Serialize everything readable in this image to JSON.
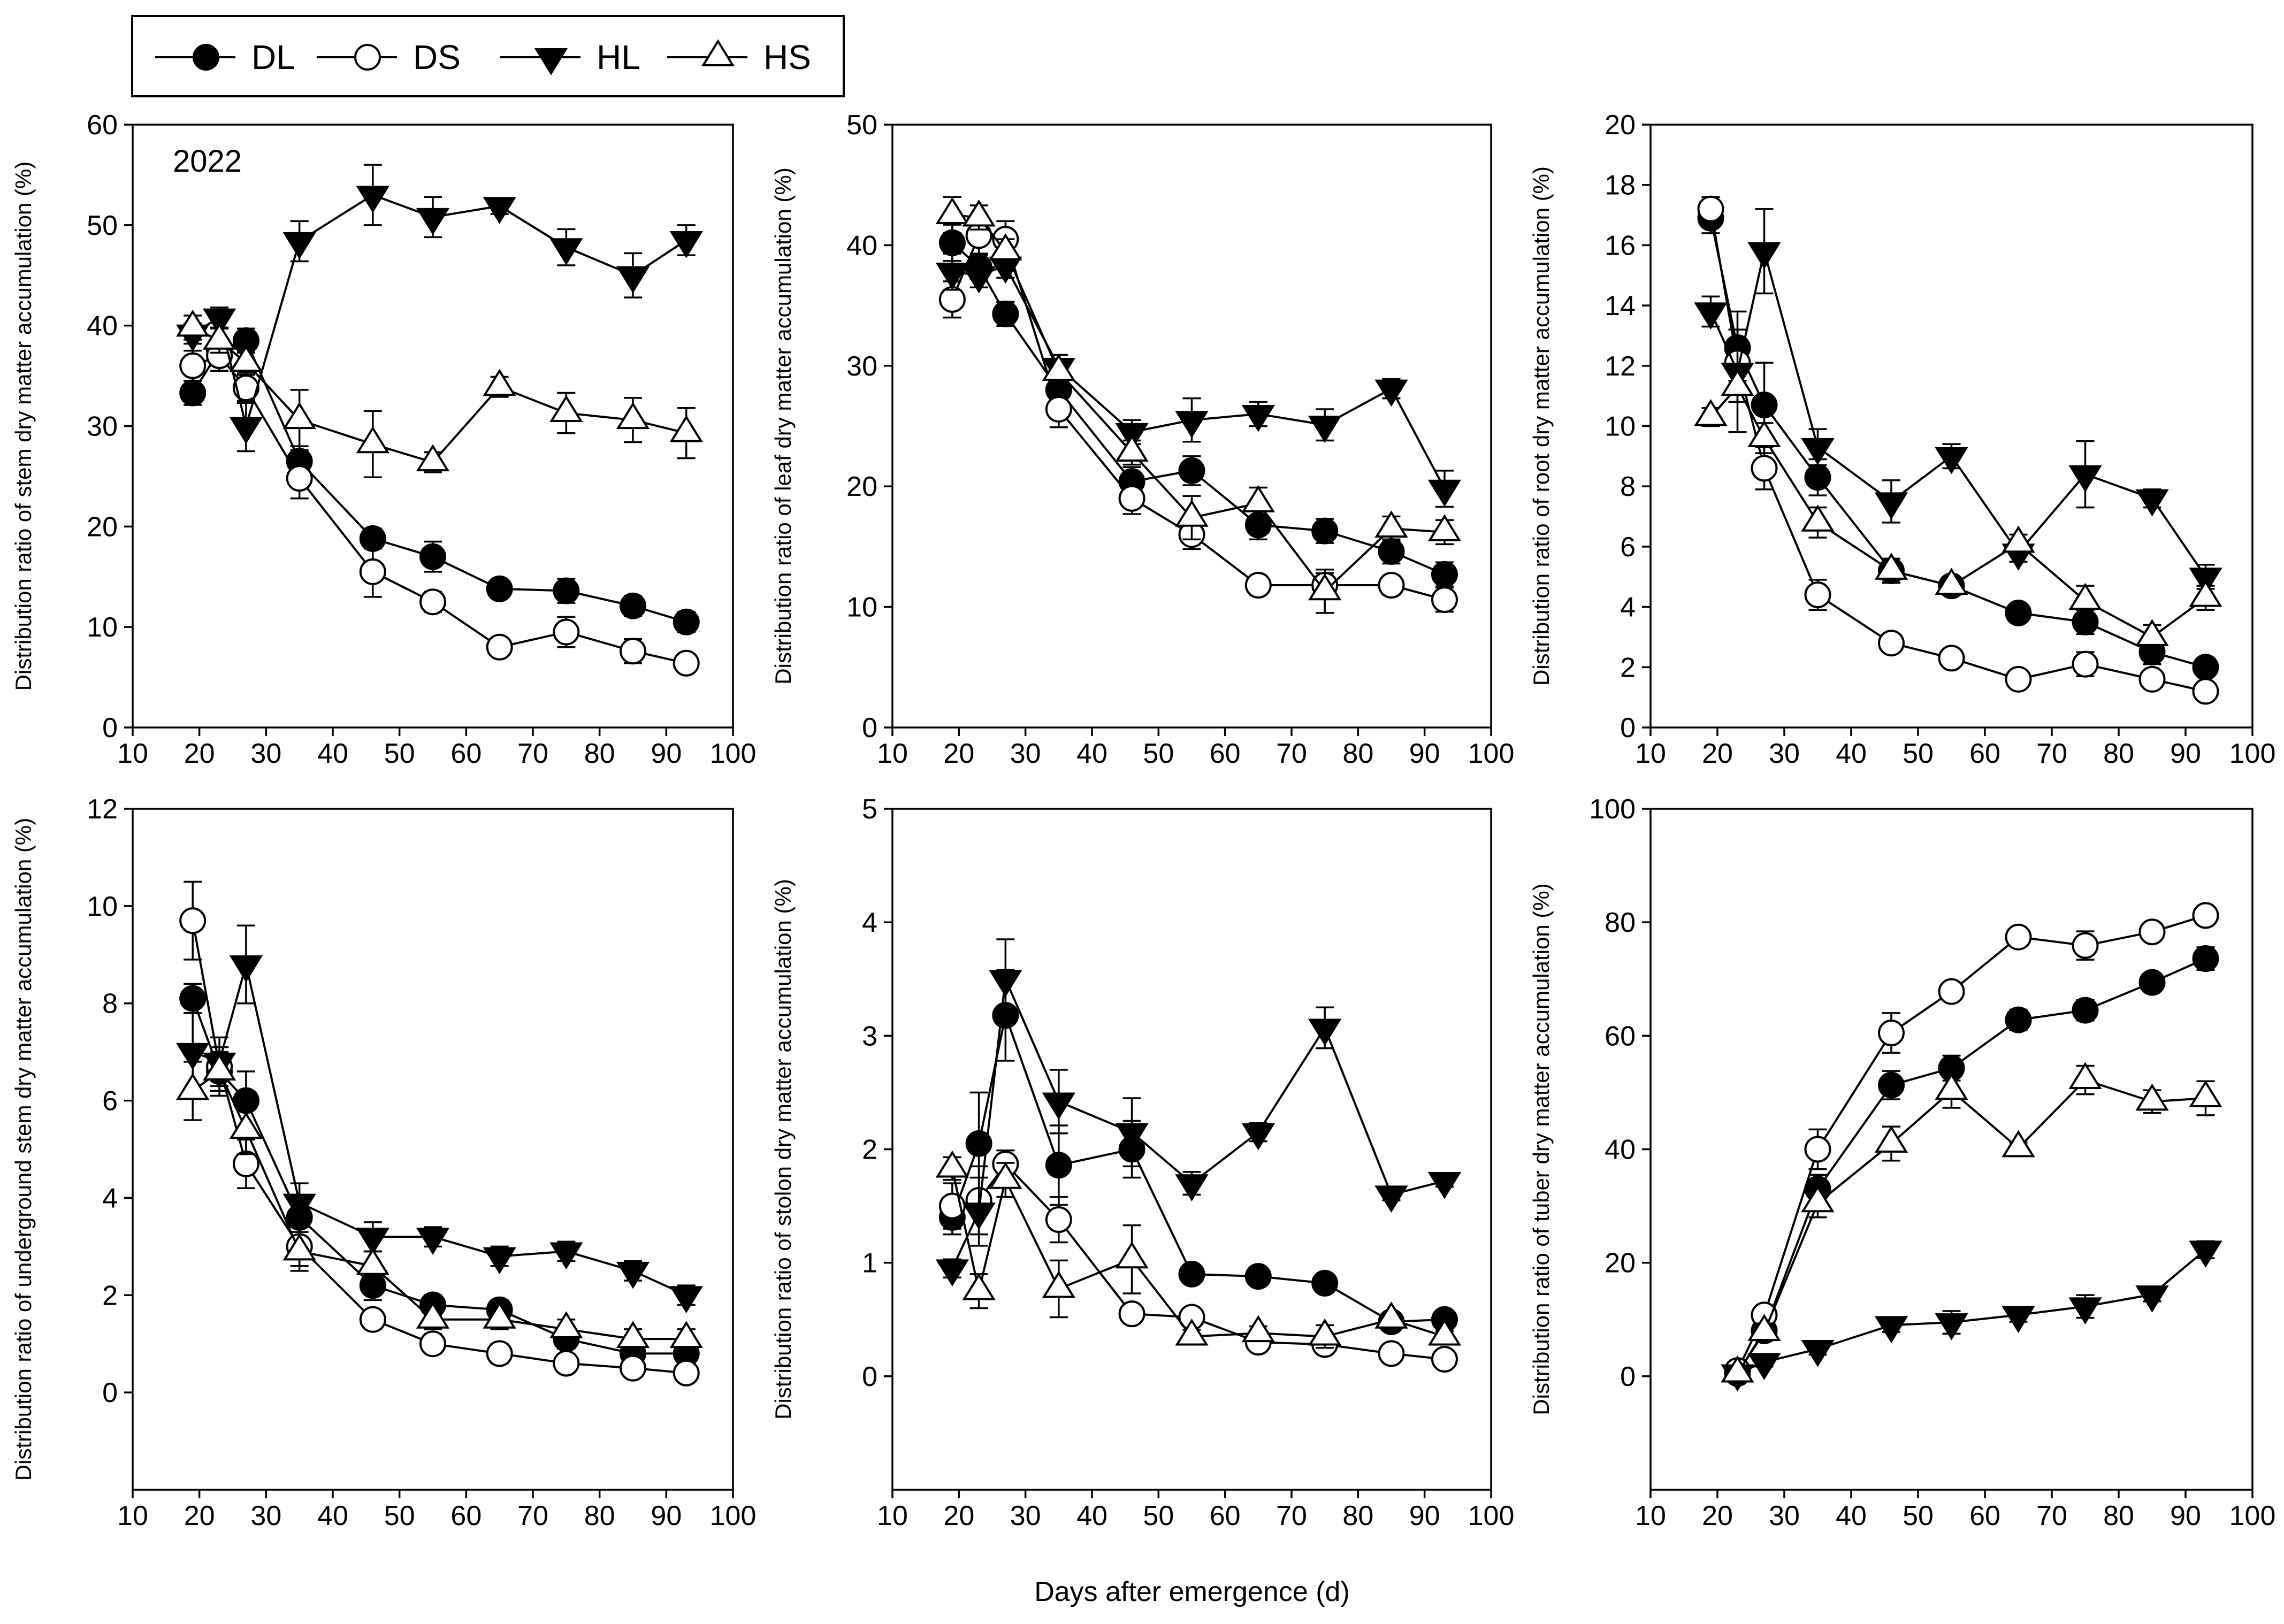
{
  "figure": {
    "shared_xlabel": "Days after emergence (d)",
    "legend": [
      {
        "name": "DL",
        "marker": "circle",
        "fill": "#000000"
      },
      {
        "name": "DS",
        "marker": "circle",
        "fill": "#ffffff"
      },
      {
        "name": "HL",
        "marker": "triangle-down",
        "fill": "#000000"
      },
      {
        "name": "HS",
        "marker": "triangle-up",
        "fill": "#ffffff"
      }
    ],
    "line_color": "#000000"
  },
  "chart_data": [
    {
      "type": "line",
      "ylabel": "Distribution ratio of stem dry matter accumulation (%)",
      "annotation": "2022",
      "xlim": [
        10,
        100
      ],
      "ylim": [
        0,
        60
      ],
      "xticks": [
        10,
        20,
        30,
        40,
        50,
        60,
        70,
        80,
        90,
        100
      ],
      "yticks": [
        0,
        10,
        20,
        30,
        40,
        50,
        60
      ],
      "series": [
        {
          "name": "DL",
          "x": [
            19,
            23,
            27,
            35,
            46,
            55,
            65,
            75,
            85,
            93
          ],
          "values": [
            33.3,
            37.5,
            38.5,
            26.5,
            18.8,
            17,
            13.8,
            13.6,
            12.1,
            10.5
          ],
          "err": [
            1.2,
            1,
            1.2,
            1.5,
            1,
            1.5,
            0.8,
            1.2,
            1,
            1
          ]
        },
        {
          "name": "DS",
          "x": [
            19,
            23,
            27,
            35,
            46,
            55,
            65,
            75,
            85,
            93
          ],
          "values": [
            36,
            37,
            33.8,
            24.8,
            15.5,
            12.5,
            8,
            9.5,
            7.6,
            6.4
          ],
          "err": [
            1.5,
            1.5,
            1.5,
            2,
            2.5,
            1,
            0.8,
            1.5,
            1.2,
            0.8
          ]
        },
        {
          "name": "HL",
          "x": [
            19,
            23,
            27,
            35,
            46,
            55,
            65,
            75,
            85,
            93
          ],
          "values": [
            39.2,
            40.8,
            30,
            48.4,
            53,
            50.8,
            51.9,
            47.8,
            45,
            48.5
          ],
          "err": [
            1,
            1,
            2.5,
            2,
            3,
            2,
            0.8,
            1.8,
            2.2,
            1.5
          ]
        },
        {
          "name": "HS",
          "x": [
            19,
            23,
            27,
            35,
            46,
            55,
            65,
            75,
            85,
            93
          ],
          "values": [
            39.8,
            38.5,
            36.3,
            30.6,
            28.2,
            26.4,
            33.9,
            31.3,
            30.6,
            29.3
          ],
          "err": [
            1.2,
            1.2,
            1.2,
            3,
            3.3,
            1,
            1,
            2,
            2.2,
            2.5
          ]
        }
      ]
    },
    {
      "type": "line",
      "ylabel": "Distribution ratio of leaf dry matter accumulation (%)",
      "xlim": [
        10,
        100
      ],
      "ylim": [
        0,
        50
      ],
      "xticks": [
        10,
        20,
        30,
        40,
        50,
        60,
        70,
        80,
        90,
        100
      ],
      "yticks": [
        0,
        10,
        20,
        30,
        40,
        50
      ],
      "series": [
        {
          "name": "DL",
          "x": [
            19,
            23,
            27,
            35,
            46,
            55,
            65,
            75,
            85,
            93
          ],
          "values": [
            40.2,
            38.2,
            34.3,
            28,
            20.4,
            21.3,
            16.8,
            16.3,
            14.6,
            12.7
          ],
          "err": [
            1.5,
            1,
            1,
            1,
            1.2,
            1.2,
            1.2,
            1,
            1,
            1
          ]
        },
        {
          "name": "DS",
          "x": [
            19,
            23,
            27,
            35,
            46,
            55,
            65,
            75,
            85,
            93
          ],
          "values": [
            35.5,
            40.8,
            40.5,
            26.4,
            19,
            16,
            11.8,
            11.8,
            11.8,
            10.6
          ],
          "err": [
            1.5,
            1.5,
            1.5,
            1.5,
            1.3,
            1.2,
            0.8,
            1,
            0.8,
            1
          ]
        },
        {
          "name": "HL",
          "x": [
            19,
            23,
            27,
            35,
            46,
            55,
            65,
            75,
            85,
            93
          ],
          "values": [
            37.8,
            37.5,
            38.3,
            29.9,
            24.5,
            25.5,
            26,
            25.1,
            28.1,
            19.8
          ],
          "err": [
            1.5,
            1,
            1,
            1,
            1,
            1.8,
            1,
            1.3,
            0.8,
            1.5
          ]
        },
        {
          "name": "HS",
          "x": [
            19,
            23,
            27,
            35,
            46,
            55,
            65,
            75,
            85,
            93
          ],
          "values": [
            42.5,
            42.3,
            39.5,
            29.5,
            22.8,
            17.4,
            18.6,
            11.3,
            16.5,
            16.2
          ],
          "err": [
            1.5,
            1,
            1,
            1,
            1,
            1.8,
            1.3,
            1.8,
            1,
            1
          ]
        }
      ]
    },
    {
      "type": "line",
      "ylabel": "Distribution ratio of root dry matter accumulation (%)",
      "xlim": [
        10,
        100
      ],
      "ylim": [
        0,
        20
      ],
      "xticks": [
        10,
        20,
        30,
        40,
        50,
        60,
        70,
        80,
        90,
        100
      ],
      "yticks": [
        0,
        2,
        4,
        6,
        8,
        10,
        12,
        14,
        16,
        18,
        20
      ],
      "series": [
        {
          "name": "DL",
          "x": [
            19,
            23,
            27,
            35,
            46,
            55,
            65,
            75,
            85,
            93
          ],
          "values": [
            16.9,
            12.6,
            10.7,
            8.3,
            5.2,
            4.7,
            3.8,
            3.5,
            2.5,
            2
          ],
          "err": [
            0.5,
            0.6,
            1.4,
            0.6,
            0.4,
            0.3,
            0.3,
            0.4,
            0.4,
            0.3
          ]
        },
        {
          "name": "DS",
          "x": [
            19,
            23,
            27,
            35,
            46,
            55,
            65,
            75,
            85,
            93
          ],
          "values": [
            17.2,
            12.1,
            8.6,
            4.4,
            2.8,
            2.3,
            1.6,
            2.1,
            1.6,
            1.2
          ],
          "err": [
            0.4,
            0.6,
            0.7,
            0.5,
            0.3,
            0.3,
            0.2,
            0.4,
            0.3,
            0.2
          ]
        },
        {
          "name": "HL",
          "x": [
            19,
            23,
            27,
            35,
            46,
            55,
            65,
            75,
            85,
            93
          ],
          "values": [
            13.8,
            11.8,
            15.8,
            9.3,
            7.5,
            9,
            5.8,
            8.4,
            7.6,
            5
          ],
          "err": [
            0.5,
            2,
            1.4,
            0.6,
            0.7,
            0.4,
            0.3,
            1.1,
            0.3,
            0.4
          ]
        },
        {
          "name": "HS",
          "x": [
            19,
            23,
            27,
            35,
            46,
            55,
            65,
            75,
            85,
            93
          ],
          "values": [
            10.3,
            11.3,
            9.6,
            6.8,
            5.2,
            4.7,
            6.1,
            4.2,
            3,
            4.3
          ],
          "err": [
            0.3,
            0.5,
            0.5,
            0.5,
            0.4,
            0.3,
            0.3,
            0.5,
            0.4,
            0.4
          ]
        }
      ]
    },
    {
      "type": "line",
      "ylabel": "Distribution ratio of underground stem dry matter accumulation (%)",
      "xlim": [
        10,
        100
      ],
      "ylim": [
        -2,
        12
      ],
      "xticks": [
        10,
        20,
        30,
        40,
        50,
        60,
        70,
        80,
        90,
        100
      ],
      "yticks": [
        0,
        2,
        4,
        6,
        8,
        10,
        12
      ],
      "series": [
        {
          "name": "DL",
          "x": [
            19,
            23,
            27,
            35,
            46,
            55,
            65,
            75,
            85,
            93
          ],
          "values": [
            8.1,
            6.6,
            6,
            3.6,
            2.2,
            1.8,
            1.7,
            1.1,
            0.8,
            0.8
          ],
          "err": [
            0.3,
            0.4,
            0.6,
            0.4,
            0.3,
            0.2,
            0.2,
            0.2,
            0.2,
            0.2
          ]
        },
        {
          "name": "DS",
          "x": [
            19,
            23,
            27,
            35,
            46,
            55,
            65,
            75,
            85,
            93
          ],
          "values": [
            9.7,
            6.7,
            4.7,
            3,
            1.5,
            1,
            0.8,
            0.6,
            0.5,
            0.4
          ],
          "err": [
            0.8,
            0.4,
            0.5,
            0.4,
            0.2,
            0.2,
            0.2,
            0.1,
            0.1,
            0.1
          ]
        },
        {
          "name": "HL",
          "x": [
            19,
            23,
            27,
            35,
            46,
            55,
            65,
            75,
            85,
            93
          ],
          "values": [
            7,
            6.8,
            8.8,
            3.9,
            3.2,
            3.2,
            2.8,
            2.9,
            2.5,
            2
          ],
          "err": [
            0.8,
            0.5,
            0.8,
            0.4,
            0.3,
            0.2,
            0.2,
            0.2,
            0.2,
            0.2
          ]
        },
        {
          "name": "HS",
          "x": [
            19,
            23,
            27,
            35,
            46,
            55,
            65,
            75,
            85,
            93
          ],
          "values": [
            6.2,
            6.6,
            5.4,
            2.9,
            2.6,
            1.5,
            1.5,
            1.3,
            1.1,
            1.1
          ],
          "err": [
            0.6,
            0.5,
            0.5,
            0.4,
            0.3,
            0.2,
            0.2,
            0.2,
            0.2,
            0.2
          ]
        }
      ]
    },
    {
      "type": "line",
      "ylabel": "Distribution ratio of stolon dry matter accumulation (%)",
      "xlim": [
        10,
        100
      ],
      "ylim": [
        -1,
        5
      ],
      "xticks": [
        10,
        20,
        30,
        40,
        50,
        60,
        70,
        80,
        90,
        100
      ],
      "yticks": [
        0,
        1,
        2,
        3,
        4,
        5
      ],
      "series": [
        {
          "name": "DL",
          "x": [
            19,
            23,
            27,
            35,
            46,
            55,
            65,
            75,
            85,
            93
          ],
          "values": [
            1.4,
            2.05,
            3.18,
            1.86,
            2,
            0.9,
            0.88,
            0.82,
            0.48,
            0.5
          ],
          "err": [
            0.15,
            0.45,
            0.4,
            0.35,
            0.25,
            0.08,
            0.06,
            0.08,
            0.06,
            0.06
          ]
        },
        {
          "name": "DS",
          "x": [
            19,
            23,
            27,
            35,
            46,
            55,
            65,
            75,
            85,
            93
          ],
          "values": [
            1.5,
            1.55,
            1.87,
            1.38,
            0.55,
            0.52,
            0.3,
            0.28,
            0.2,
            0.15
          ],
          "err": [
            0.2,
            0.3,
            0.12,
            0.2,
            0.08,
            0.08,
            0.05,
            0.05,
            0.05,
            0.04
          ]
        },
        {
          "name": "HL",
          "x": [
            19,
            23,
            27,
            35,
            46,
            55,
            65,
            75,
            85,
            93
          ],
          "values": [
            0.95,
            1.45,
            3.5,
            2.42,
            2.15,
            1.7,
            2.15,
            3.07,
            1.6,
            1.72
          ],
          "err": [
            0.08,
            0.3,
            0.35,
            0.28,
            0.3,
            0.1,
            0.08,
            0.18,
            0.05,
            0.05
          ]
        },
        {
          "name": "HS",
          "x": [
            19,
            23,
            27,
            35,
            46,
            55,
            65,
            75,
            85,
            93
          ],
          "values": [
            1.83,
            0.75,
            1.73,
            0.77,
            1.03,
            0.35,
            0.38,
            0.35,
            0.5,
            0.35
          ],
          "err": [
            0.1,
            0.15,
            0.15,
            0.25,
            0.3,
            0.06,
            0.06,
            0.1,
            0.05,
            0.05
          ]
        }
      ]
    },
    {
      "type": "line",
      "ylabel": "Distribution ratio of tuber dry matter accumulation (%)",
      "xlim": [
        10,
        100
      ],
      "ylim": [
        -20,
        100
      ],
      "xticks": [
        10,
        20,
        30,
        40,
        50,
        60,
        70,
        80,
        90,
        100
      ],
      "yticks": [
        0,
        20,
        40,
        60,
        80,
        100
      ],
      "series": [
        {
          "name": "DL",
          "x": [
            23,
            27,
            35,
            46,
            55,
            65,
            75,
            85,
            93
          ],
          "values": [
            0.5,
            8,
            33,
            51.3,
            54.3,
            62.8,
            64.5,
            69.4,
            73.6
          ],
          "err": [
            0.5,
            1.5,
            2.5,
            2.5,
            2.2,
            1.8,
            1.8,
            1.5,
            2
          ]
        },
        {
          "name": "DS",
          "x": [
            23,
            27,
            35,
            46,
            55,
            65,
            75,
            85,
            93
          ],
          "values": [
            1,
            10.8,
            40,
            60.5,
            67.8,
            77.4,
            75.9,
            78.3,
            81.2
          ],
          "err": [
            0.5,
            1.5,
            3.5,
            3.5,
            1.5,
            1.2,
            2.5,
            1.2,
            1.5
          ]
        },
        {
          "name": "HL",
          "x": [
            23,
            27,
            35,
            46,
            55,
            65,
            75,
            85,
            93
          ],
          "values": [
            0.5,
            2.5,
            4.8,
            9,
            9.5,
            10.8,
            12.3,
            14.4,
            22.3
          ],
          "err": [
            0.3,
            0.8,
            1,
            1.2,
            2,
            1.2,
            2,
            1.2,
            1.5
          ]
        },
        {
          "name": "HS",
          "x": [
            23,
            27,
            35,
            46,
            55,
            65,
            75,
            85,
            93
          ],
          "values": [
            0.5,
            7.8,
            30.5,
            41,
            50.3,
            40.2,
            52.2,
            48.4,
            49
          ],
          "err": [
            0.3,
            1.5,
            2.5,
            3,
            3,
            1,
            2.5,
            2,
            3
          ]
        }
      ]
    }
  ]
}
